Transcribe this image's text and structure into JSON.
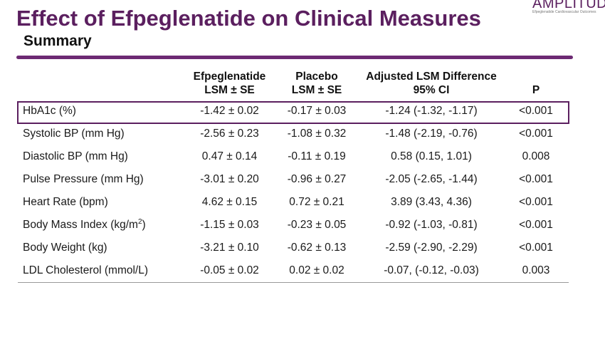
{
  "header": {
    "title": "Effect of Efpeglenatide on Clinical Measures",
    "subtitle": "Summary"
  },
  "logo": {
    "word": "AMPLITUDE",
    "tagline": "Efpeglenatide Cardiovascular Outcomes"
  },
  "colors": {
    "accent": "#5b1f5f",
    "divider": "#6d2a73"
  },
  "table": {
    "headers": [
      {
        "line1": "",
        "line2": ""
      },
      {
        "line1": "Efpeglenatide",
        "line2": "LSM ± SE"
      },
      {
        "line1": "Placebo",
        "line2": "LSM ± SE"
      },
      {
        "line1": "Adjusted LSM Difference",
        "line2": "95% CI"
      },
      {
        "line1": "P",
        "line2": ""
      }
    ],
    "rows": [
      {
        "measure": "HbA1c (%)",
        "efpeglenatide": "-1.42 ± 0.02",
        "placebo": "-0.17 ± 0.03",
        "difference": "-1.24 (-1.32, -1.17)",
        "p": "<0.001",
        "highlighted": true
      },
      {
        "measure": "Systolic BP (mm Hg)",
        "efpeglenatide": "-2.56 ± 0.23",
        "placebo": "-1.08 ± 0.32",
        "difference": "-1.48 (-2.19, -0.76)",
        "p": "<0.001"
      },
      {
        "measure": "Diastolic BP (mm Hg)",
        "efpeglenatide": "0.47 ± 0.14",
        "placebo": "-0.11 ± 0.19",
        "difference": "0.58 (0.15, 1.01)",
        "p": "0.008"
      },
      {
        "measure": "Pulse Pressure (mm Hg)",
        "efpeglenatide": "-3.01 ± 0.20",
        "placebo": "-0.96 ± 0.27",
        "difference": "-2.05 (-2.65, -1.44)",
        "p": "<0.001"
      },
      {
        "measure": "Heart Rate (bpm)",
        "efpeglenatide": "4.62 ± 0.15",
        "placebo": "0.72 ± 0.21",
        "difference": "3.89 (3.43, 4.36)",
        "p": "<0.001"
      },
      {
        "measure": "Body Mass Index (kg/m",
        "measure_sup": "2",
        "measure_suffix": ")",
        "efpeglenatide": "-1.15 ± 0.03",
        "placebo": "-0.23 ± 0.05",
        "difference": "-0.92 (-1.03, -0.81)",
        "p": "<0.001"
      },
      {
        "measure": "Body Weight (kg)",
        "efpeglenatide": "-3.21 ± 0.10",
        "placebo": "-0.62 ± 0.13",
        "difference": "-2.59 (-2.90, -2.29)",
        "p": "<0.001"
      },
      {
        "measure": "LDL Cholesterol (mmol/L)",
        "efpeglenatide": "-0.05 ± 0.02",
        "placebo": "0.02 ± 0.02",
        "difference": "-0.07, (-0.12, -0.03)",
        "p": "0.003"
      }
    ]
  }
}
